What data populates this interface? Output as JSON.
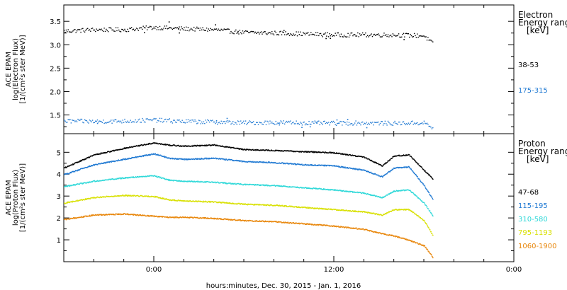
{
  "chart_data": [
    {
      "type": "scatter",
      "panel": "electron",
      "ylabel_lines": [
        "ACE EPAM",
        "log(Electron Flux)",
        "[1/(cm²s ster MeV)]"
      ],
      "legend_title": [
        "Electron",
        "Energy ranges",
        "[keV]"
      ],
      "ylim": [
        1.1,
        3.85
      ],
      "yticks": [
        1.5,
        2.0,
        2.5,
        3.0,
        3.5
      ],
      "ytick_labels": [
        "1.5",
        "2.0",
        "2.5",
        "3.0",
        "3.5"
      ],
      "series": [
        {
          "name": "38-53",
          "color": "#000000",
          "x": [
            -6,
            -4,
            -2,
            0,
            2,
            4,
            6,
            8,
            10,
            12,
            14,
            16,
            18,
            18.6
          ],
          "y": [
            3.3,
            3.33,
            3.33,
            3.38,
            3.35,
            3.33,
            3.27,
            3.26,
            3.24,
            3.22,
            3.22,
            3.22,
            3.2,
            3.02
          ]
        },
        {
          "name": "175-315",
          "color": "#1e78d2",
          "x": [
            -6,
            -4,
            -2,
            0,
            2,
            4,
            6,
            8,
            10,
            12,
            14,
            16,
            18,
            18.6
          ],
          "y": [
            1.38,
            1.37,
            1.38,
            1.4,
            1.37,
            1.36,
            1.34,
            1.35,
            1.34,
            1.33,
            1.34,
            1.33,
            1.34,
            1.22
          ]
        }
      ]
    },
    {
      "type": "scatter",
      "panel": "proton",
      "ylabel_lines": [
        "ACE EPAM",
        "log(Proton Flux)",
        "[1/(cm²s ster MeV)]"
      ],
      "legend_title": [
        "Proton",
        "Energy ranges",
        "[keV]"
      ],
      "ylim": [
        0,
        5.85
      ],
      "yticks": [
        1,
        2,
        3,
        4,
        5
      ],
      "ytick_labels": [
        "1",
        "2",
        "3",
        "4",
        "5"
      ],
      "xlabel": "hours:minutes, Dec. 30, 2015 - Jan.  1, 2016",
      "xlim": [
        -6,
        24
      ],
      "xticks": [
        0,
        12,
        24
      ],
      "xtick_labels": [
        "0:00",
        "12:00",
        "0:00"
      ],
      "series": [
        {
          "name": "47-68",
          "color": "#000000",
          "x": [
            -6,
            -4,
            -2,
            0,
            1,
            2,
            4,
            6,
            8,
            10,
            12,
            14,
            15.2,
            16,
            17,
            18,
            18.6
          ],
          "y": [
            4.3,
            4.9,
            5.2,
            5.45,
            5.35,
            5.3,
            5.35,
            5.15,
            5.1,
            5.05,
            5.0,
            4.8,
            4.4,
            4.85,
            4.9,
            4.2,
            3.8
          ]
        },
        {
          "name": "115-195",
          "color": "#1e78d2",
          "x": [
            -6,
            -4,
            -2,
            0,
            1,
            2,
            4,
            6,
            8,
            10,
            12,
            14,
            15.2,
            16,
            17,
            18,
            18.6
          ],
          "y": [
            4.0,
            4.45,
            4.7,
            4.95,
            4.75,
            4.7,
            4.75,
            4.6,
            4.55,
            4.45,
            4.4,
            4.2,
            3.9,
            4.3,
            4.35,
            3.5,
            2.85
          ]
        },
        {
          "name": "310-580",
          "color": "#2ed8d8",
          "x": [
            -6,
            -4,
            -2,
            0,
            1,
            2,
            4,
            6,
            8,
            10,
            12,
            14,
            15.2,
            16,
            17,
            18,
            18.6
          ],
          "y": [
            3.45,
            3.7,
            3.85,
            3.95,
            3.75,
            3.7,
            3.65,
            3.55,
            3.5,
            3.4,
            3.3,
            3.15,
            2.95,
            3.25,
            3.3,
            2.7,
            2.1
          ]
        },
        {
          "name": "795-1193",
          "color": "#d8e000",
          "x": [
            -6,
            -4,
            -2,
            0,
            1,
            2,
            4,
            6,
            8,
            10,
            12,
            14,
            15.2,
            16,
            17,
            18,
            18.6
          ],
          "y": [
            2.7,
            2.95,
            3.05,
            3.0,
            2.85,
            2.8,
            2.75,
            2.65,
            2.6,
            2.5,
            2.4,
            2.3,
            2.15,
            2.4,
            2.4,
            1.9,
            1.2
          ]
        },
        {
          "name": "1060-1900",
          "color": "#e8860a",
          "x": [
            -6,
            -4,
            -2,
            0,
            1,
            2,
            4,
            6,
            8,
            10,
            12,
            14,
            15.2,
            16,
            17,
            18,
            18.6
          ],
          "y": [
            1.95,
            2.15,
            2.2,
            2.1,
            2.05,
            2.05,
            2.0,
            1.9,
            1.85,
            1.75,
            1.65,
            1.5,
            1.3,
            1.2,
            1.0,
            0.75,
            0.2
          ]
        }
      ]
    }
  ]
}
